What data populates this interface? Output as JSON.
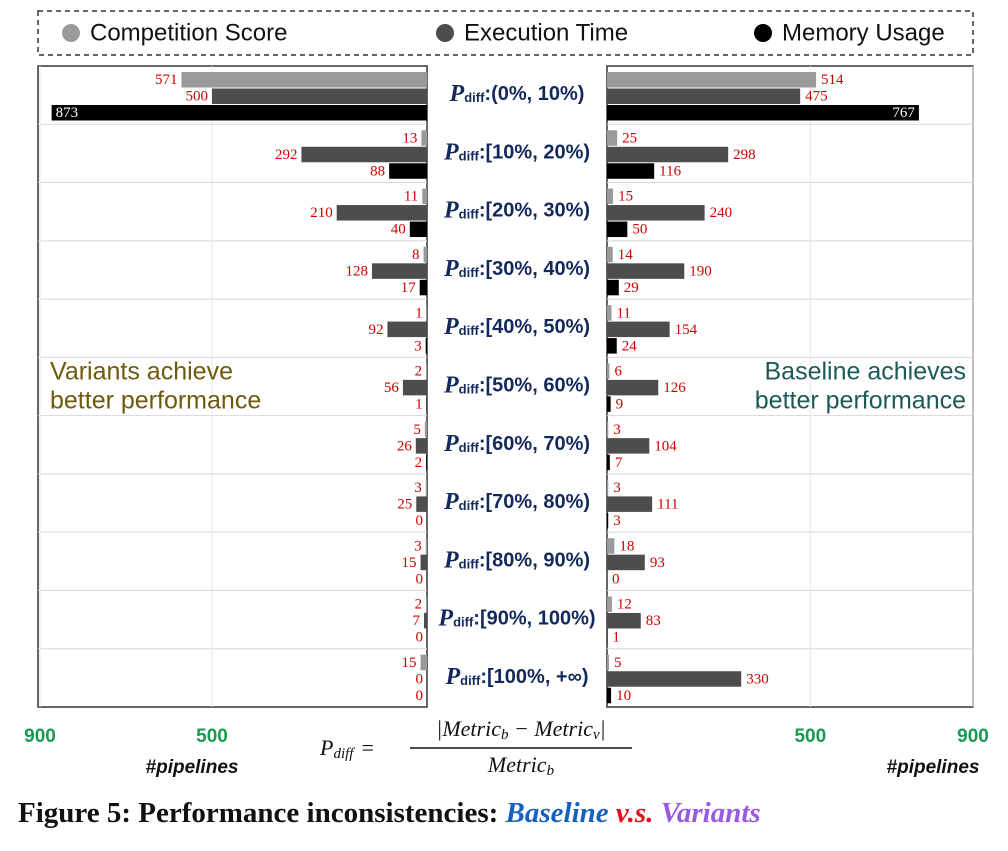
{
  "chart_data": {
    "type": "butterfly",
    "orientation": "horizontal",
    "label_symbol": "P",
    "label_subscript": "diff",
    "categories": [
      ":(0%, 10%)",
      ":[10%, 20%)",
      ":[20%, 30%)",
      ":[30%, 40%)",
      ":[40%, 50%)",
      ":[50%, 60%)",
      ":[60%, 70%)",
      ":[70%, 80%)",
      ":[80%, 90%)",
      ":[90%, 100%)",
      ":[100%, +∞)"
    ],
    "series": [
      {
        "name": "Competition Score",
        "color": "#9a9a9a",
        "left_values": [
          571,
          13,
          11,
          8,
          1,
          2,
          5,
          3,
          3,
          2,
          15
        ],
        "right_values": [
          514,
          25,
          15,
          14,
          11,
          6,
          3,
          3,
          18,
          12,
          5
        ]
      },
      {
        "name": "Execution Time",
        "color": "#4d4d4d",
        "left_values": [
          500,
          292,
          210,
          128,
          92,
          56,
          26,
          25,
          15,
          7,
          0
        ],
        "right_values": [
          475,
          298,
          240,
          190,
          154,
          126,
          104,
          111,
          93,
          83,
          330
        ]
      },
      {
        "name": "Memory Usage",
        "color": "#000000",
        "left_values": [
          873,
          88,
          40,
          17,
          3,
          1,
          2,
          0,
          0,
          0,
          0
        ],
        "right_values": [
          767,
          116,
          50,
          29,
          24,
          9,
          7,
          3,
          0,
          1,
          10
        ]
      }
    ],
    "legend": "top",
    "grid": true,
    "left_panel": {
      "xlim": [
        0,
        900
      ],
      "xticks": [
        900,
        500
      ],
      "xlabel": "#pipelines",
      "annotation": [
        "Variants achieve",
        "better performance"
      ],
      "annotation_color": "#6e5a0c"
    },
    "right_panel": {
      "xlim": [
        0,
        900
      ],
      "xticks": [
        500,
        900
      ],
      "xlabel": "#pipelines",
      "annotation": [
        "Baseline achieves",
        "better performance"
      ],
      "annotation_color": "#1d5a57"
    },
    "formula": {
      "symbol": "P",
      "subscript": "diff",
      "equals": "=",
      "numerator": [
        "|Metric",
        "b",
        " − Metric",
        "v",
        "|"
      ],
      "denominator": [
        "Metric",
        "b"
      ]
    },
    "caption": [
      {
        "text": "Figure 5: Performance inconsistencies: ",
        "color": "#111111",
        "italic": false
      },
      {
        "text": "Baseline",
        "color": "#1560c0",
        "italic": true
      },
      {
        "text": " v.s. ",
        "color": "#e0101a",
        "italic": true
      },
      {
        "text": "Variants",
        "color": "#9a5ae0",
        "italic": true
      }
    ]
  }
}
